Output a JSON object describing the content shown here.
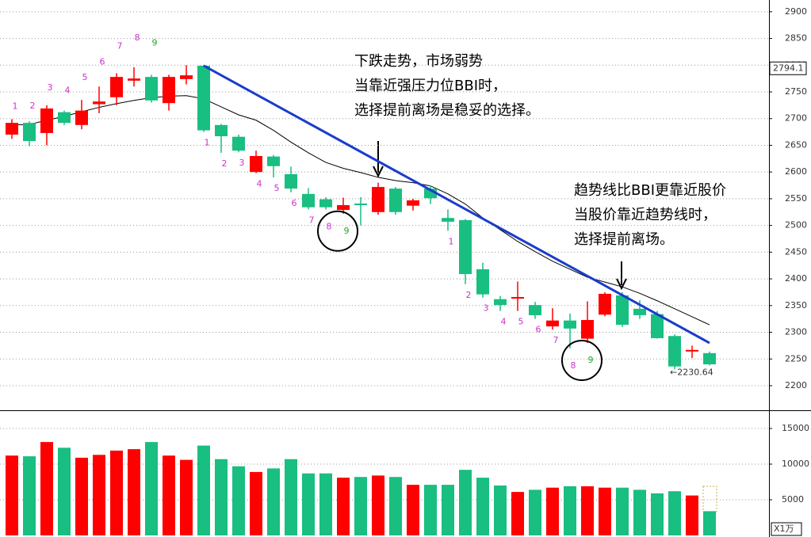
{
  "chart_data": [
    {
      "type": "candlestick",
      "up_color": "#ff0000",
      "down_color": "#19be81",
      "open": [
        2670,
        2692,
        2673,
        2712,
        2688,
        2727,
        2740,
        2771,
        2778,
        2729,
        2774,
        2799,
        2688,
        2666,
        2600,
        2629,
        2596,
        2559,
        2549,
        2529,
        2541,
        2525,
        2569,
        2537,
        2569,
        2514,
        2510,
        2418,
        2362,
        2363,
        2351,
        2311,
        2322,
        2288,
        2333,
        2369,
        2344,
        2334,
        2293,
        2264,
        2261
      ],
      "close": [
        2692,
        2658,
        2719,
        2692,
        2715,
        2732,
        2778,
        2775,
        2734,
        2778,
        2781,
        2678,
        2667,
        2640,
        2630,
        2611,
        2569,
        2534,
        2534,
        2538,
        2540,
        2572,
        2525,
        2547,
        2551,
        2507,
        2409,
        2371,
        2351,
        2366,
        2332,
        2322,
        2307,
        2323,
        2372,
        2314,
        2332,
        2289,
        2236,
        2267,
        2240
      ],
      "high": [
        2699,
        2695,
        2725,
        2715,
        2735,
        2760,
        2785,
        2796,
        2782,
        2782,
        2800,
        2800,
        2690,
        2670,
        2640,
        2632,
        2610,
        2570,
        2553,
        2552,
        2553,
        2580,
        2572,
        2550,
        2575,
        2530,
        2512,
        2430,
        2368,
        2395,
        2357,
        2345,
        2335,
        2358,
        2375,
        2375,
        2360,
        2340,
        2296,
        2275,
        2264
      ],
      "low": [
        2662,
        2648,
        2650,
        2688,
        2680,
        2710,
        2725,
        2760,
        2730,
        2715,
        2764,
        2675,
        2636,
        2637,
        2598,
        2590,
        2562,
        2530,
        2530,
        2522,
        2500,
        2520,
        2520,
        2528,
        2540,
        2490,
        2390,
        2365,
        2340,
        2340,
        2325,
        2305,
        2270,
        2280,
        2330,
        2310,
        2325,
        2288,
        2230.64,
        2252,
        2238
      ],
      "bbi": {
        "color": "#000000",
        "values": [
          2688,
          2689,
          2697,
          2704,
          2713,
          2721,
          2728,
          2734,
          2739,
          2742,
          2743,
          2737,
          2722,
          2707,
          2697,
          2678,
          2656,
          2636,
          2618,
          2607,
          2599,
          2590,
          2584,
          2580,
          2574,
          2559,
          2540,
          2514,
          2492,
          2470,
          2451,
          2433,
          2418,
          2403,
          2394,
          2385,
          2373,
          2359,
          2344,
          2329,
          2314
        ]
      },
      "trendline": {
        "color": "#1a3ccc",
        "start": 11,
        "end": 40,
        "values": [
          2799,
          2280
        ]
      },
      "td_colors": {
        "count": "#cc33cc",
        "final": "#22aa22"
      },
      "td_sequences": [
        {
          "start": 0,
          "position": "above",
          "labels": [
            1,
            2,
            3,
            4,
            5,
            6,
            7,
            8,
            9
          ]
        },
        {
          "start": 11,
          "position": "below",
          "labels": [
            1,
            2,
            3,
            4,
            5,
            6,
            7,
            8,
            9
          ]
        },
        {
          "start": 25,
          "position": "below",
          "labels": [
            1,
            2,
            3,
            4,
            5,
            6,
            7,
            8,
            9
          ]
        }
      ],
      "ylim": [
        2154,
        2922
      ],
      "yticks": [
        2200,
        2250,
        2300,
        2350,
        2400,
        2450,
        2500,
        2550,
        2600,
        2650,
        2700,
        2750,
        2800,
        2850,
        2900
      ],
      "grid": true,
      "last_price": 2794.1,
      "low_label": {
        "value": 2230.64,
        "label": "←2230.64"
      },
      "annotations": [
        {
          "lines": [
            "下跌走势，市场弱势",
            "当靠近强压力位BBI时，",
            "选择提前离场是稳妥的选择。"
          ]
        },
        {
          "lines": [
            "趋势线比BBI更靠近股价",
            "当股价靠近趋势线时，",
            "选择提前离场。"
          ]
        }
      ]
    },
    {
      "type": "volume",
      "values": [
        11200,
        11100,
        13100,
        12300,
        10900,
        11300,
        11900,
        12100,
        13100,
        11200,
        10600,
        12600,
        10700,
        9700,
        8900,
        9400,
        10700,
        8700,
        8700,
        8100,
        8200,
        8400,
        8200,
        7100,
        7100,
        7100,
        9200,
        8100,
        7000,
        6100,
        6400,
        6700,
        6900,
        6900,
        6700,
        6700,
        6400,
        5900,
        6200,
        5600,
        3400
      ],
      "ylim": [
        0,
        17333
      ],
      "yticks": [
        5000,
        10000,
        15000
      ],
      "unit": "X1万"
    }
  ]
}
